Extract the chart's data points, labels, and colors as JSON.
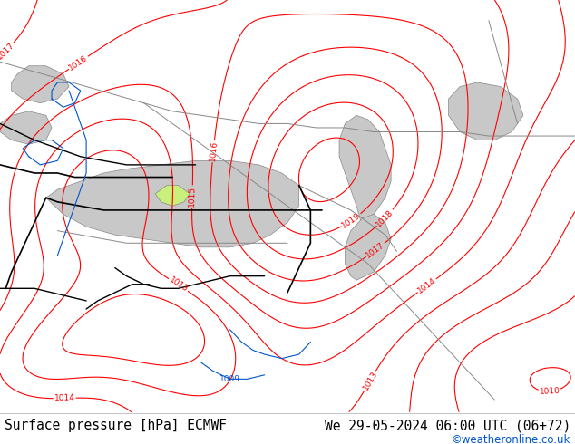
{
  "title_left": "Surface pressure [hPa] ECMWF",
  "title_right": "We 29-05-2024 06:00 UTC (06+72)",
  "copyright": "©weatheronline.co.uk",
  "bg_color": "#c8f07a",
  "sea_color": "#c8c8c8",
  "contour_color": "#ff0000",
  "black_line_color": "#000000",
  "blue_line_color": "#0055cc",
  "gray_line_color": "#888888",
  "footer_bg": "#ffffff",
  "font_size_footer": 10.5,
  "font_size_labels": 6.5
}
